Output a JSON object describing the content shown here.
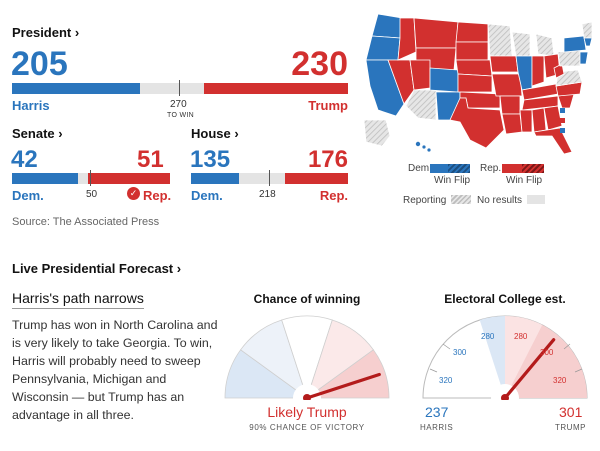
{
  "president": {
    "title": "President",
    "chevron": "›",
    "dem_votes": "205",
    "rep_votes": "230",
    "dem_name": "Harris",
    "rep_name": "Trump",
    "to_win_number": "270",
    "to_win_label": "TO WIN"
  },
  "senate": {
    "title": "Senate",
    "chevron": "›",
    "dem_seats": "42",
    "rep_seats": "51",
    "dem_label": "Dem.",
    "rep_label": "Rep.",
    "threshold": "50"
  },
  "house": {
    "title": "House",
    "chevron": "›",
    "dem_seats": "135",
    "rep_seats": "176",
    "dem_label": "Dem.",
    "rep_label": "Rep.",
    "threshold": "218"
  },
  "source": "Source: The Associated Press",
  "map_legend": {
    "dem": "Dem.",
    "rep": "Rep.",
    "win_flip": "Win Flip",
    "reporting": "Reporting",
    "no_results": "No results"
  },
  "forecast": {
    "title": "Live Presidential Forecast",
    "chevron": "›",
    "headline": "Harris's path narrows",
    "body": "Trump has won in North Carolina and is very likely to take Georgia. To win, Harris will probably need to sweep Pennsylvania, Michigan and Wisconsin — but Trump has an advantage in all three.",
    "chance_title": "Chance of winning",
    "chance_label": "Likely Trump",
    "chance_sub": "90% CHANCE OF VICTORY",
    "chance_percent": 90,
    "ec_title": "Electoral College est.",
    "ec_ticks_left": [
      "280",
      "300",
      "320"
    ],
    "ec_ticks_right": [
      "280",
      "300",
      "320"
    ],
    "dem_ev": "237",
    "rep_ev": "301",
    "dem_name": "HARRIS",
    "rep_name": "TRUMP"
  },
  "colors": {
    "dem": "#2a75bd",
    "rep": "#d2302f",
    "gray": "#e4e4e4"
  }
}
